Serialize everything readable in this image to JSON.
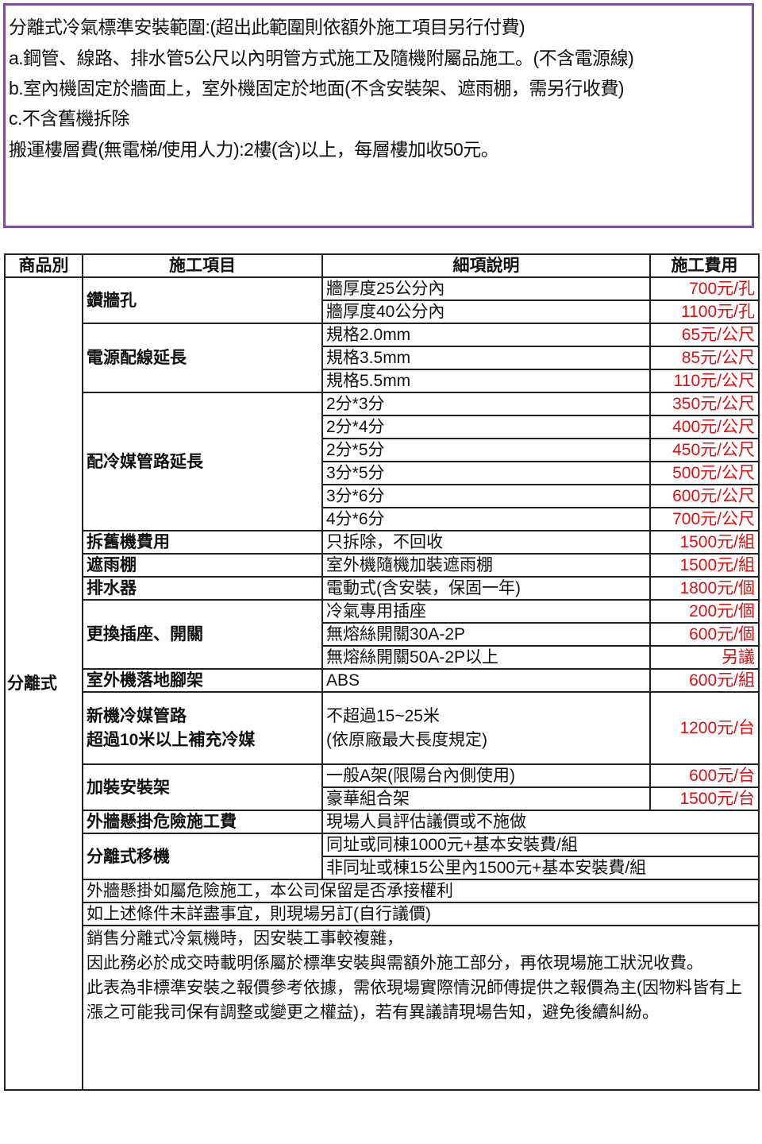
{
  "scope": {
    "lines": [
      "分離式冷氣標準安裝範圍:(超出此範圍則依額外施工項目另行付費)",
      "a.鋼管、線路、排水管5公尺以內明管方式施工及隨機附屬品施工。(不含電源線)",
      "b.室內機固定於牆面上，室外機固定於地面(不含安裝架、遮雨棚，需另行收費)",
      "c.不含舊機拆除",
      "搬運樓層費(無電梯/使用人力):2樓(含)以上，每層樓加收50元。"
    ],
    "border_color": "#7a4fa0"
  },
  "table": {
    "headers": [
      "商品別",
      "施工項目",
      "細項說明",
      "施工費用"
    ],
    "category": "分離式",
    "price_color": "#d81010",
    "groups": [
      {
        "item": "鑽牆孔",
        "rows": [
          [
            "牆厚度25公分內",
            "700元/孔"
          ],
          [
            "牆厚度40公分內",
            "1100元/孔"
          ]
        ]
      },
      {
        "item": "電源配線延長",
        "rows": [
          [
            "規格2.0mm",
            "65元/公尺"
          ],
          [
            "規格3.5mm",
            "85元/公尺"
          ],
          [
            "規格5.5mm",
            "110元/公尺"
          ]
        ]
      },
      {
        "item": "配冷媒管路延長",
        "rows": [
          [
            "2分*3分",
            "350元/公尺"
          ],
          [
            "2分*4分",
            "400元/公尺"
          ],
          [
            "2分*5分",
            "450元/公尺"
          ],
          [
            "3分*5分",
            "500元/公尺"
          ],
          [
            "3分*6分",
            "600元/公尺"
          ],
          [
            "4分*6分",
            "700元/公尺"
          ]
        ]
      },
      {
        "item": "拆舊機費用",
        "rows": [
          [
            "只拆除，不回收",
            "1500元/組"
          ]
        ]
      },
      {
        "item": "遮雨棚",
        "rows": [
          [
            "室外機隨機加裝遮雨棚",
            "1500元/組"
          ]
        ]
      },
      {
        "item": "排水器",
        "rows": [
          [
            "電動式(含安裝，保固一年)",
            "1800元/個"
          ]
        ]
      },
      {
        "item": "更換插座、開關",
        "rows": [
          [
            "冷氣專用插座",
            "200元/個"
          ],
          [
            "無熔絲開關30A-2P",
            "600元/個"
          ],
          [
            "無熔絲開關50A-2P以上",
            "另議"
          ]
        ]
      },
      {
        "item": "室外機落地腳架",
        "rows": [
          [
            "ABS",
            "600元/組"
          ]
        ]
      },
      {
        "item": "新機冷媒管路\n超過10米以上補充冷媒",
        "tall": true,
        "rows": [
          [
            "不超過15~25米\n(依原廠最大長度規定)",
            "1200元/台"
          ]
        ]
      },
      {
        "item": "加裝安裝架",
        "rows": [
          [
            "一般A架(限陽台內側使用)",
            "600元/台"
          ],
          [
            "豪華組合架",
            "1500元/台"
          ]
        ]
      },
      {
        "item": "外牆懸掛危險施工費",
        "rows": [
          [
            "現場人員評估議價或不施做"
          ]
        ]
      },
      {
        "item": "分離式移機",
        "rows": [
          [
            "同址或同棟1000元+基本安裝費/組"
          ],
          [
            "非同址或棟15公里內1500元+基本安裝費/組"
          ]
        ]
      }
    ],
    "footer_rows": [
      "外牆懸掛如屬危險施工，本公司保留是否承接權利",
      "如上述條件未詳盡事宜，則現場另訂(自行議價)"
    ],
    "notes": [
      "銷售分離式冷氣機時，因安裝工事較複雜，",
      "因此務必於成交時載明係屬於標準安裝與需額外施工部分，再依現場施工狀況收費。",
      "此表為非標準安裝之報價參考依據，需依現場實際情況師傅提供之報價為主(因物料皆有上漲之可能我司保有調整或變更之權益)，若有異議請現場告知，避免後續糾紛。"
    ]
  }
}
